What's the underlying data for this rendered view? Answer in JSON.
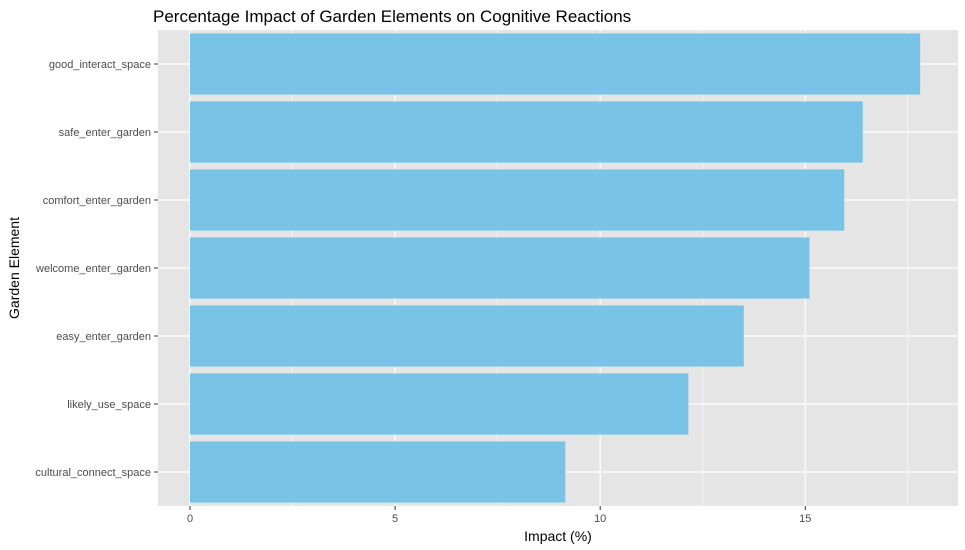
{
  "chart_data": {
    "type": "bar",
    "orientation": "horizontal",
    "title": "Percentage Impact of Garden Elements on Cognitive Reactions",
    "xlabel": "Impact (%)",
    "ylabel": "Garden Element",
    "categories": [
      "good_interact_space",
      "safe_enter_garden",
      "comfort_enter_garden",
      "welcome_enter_garden",
      "easy_enter_garden",
      "likely_use_space",
      "cultural_connect_space"
    ],
    "values": [
      17.8,
      16.4,
      15.95,
      15.1,
      13.5,
      12.15,
      9.15
    ],
    "xlim": [
      0,
      18.7
    ],
    "xticks": [
      0,
      5,
      10,
      15
    ],
    "xtick_labels": [
      "0",
      "5",
      "10",
      "15"
    ],
    "grid": true,
    "colors": {
      "bar": "#79C3E6",
      "panel": "#E5E5E5",
      "grid": "#FFFFFF"
    }
  }
}
